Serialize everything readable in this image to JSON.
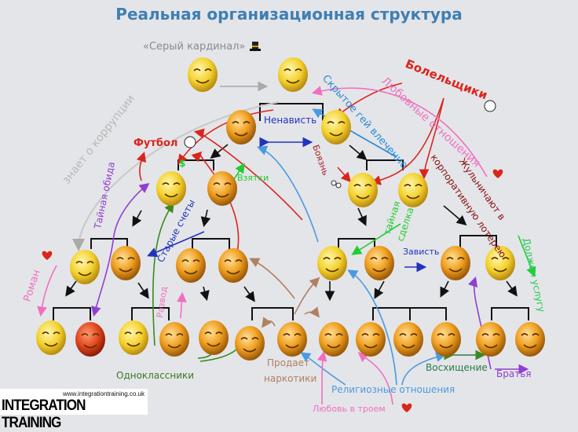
{
  "title": "Реальная организационная структура",
  "labels": {
    "grey_cardinal": "«Серый кардинал»",
    "fans": "Болельщики",
    "love_relations": "Любовные отношения",
    "hidden_gay": "Скрытое гей влечение",
    "hatred": "Ненависть",
    "football": "Футбол",
    "knows_corruption": "знает о коррупции",
    "secret_grudge": "Тайная обида",
    "bribes": "Взятки",
    "dollar": "$",
    "fear": "Боязнь",
    "cheat_1": "Жульничают в",
    "cheat_2": "корпоративную лотерею",
    "old_scores": "Старые счеты",
    "secret_deal_1": "тайная",
    "secret_deal_2": "сделка",
    "envy": "Зависть",
    "owes_favor": "Должен услугу",
    "romance": "Роман",
    "divorce": "Развод",
    "classmates": "Одноклассники",
    "drugs_1": "Продает",
    "drugs_2": "наркотики",
    "religious": "Религиозные отношения",
    "admiration": "Восхищение",
    "brothers": "Братья",
    "threesome": "Любовь в троем"
  },
  "logo": {
    "url": "www.integrationtraining.co.uk",
    "brand": "INTEGRATION TRAINING"
  },
  "colors": {
    "title": "#3f7fb3",
    "red": "#d9261c",
    "pink": "#f070c0",
    "blue": "#2a8bd6",
    "darkblue": "#2233bb",
    "green": "#22cc33",
    "purple": "#9040d0",
    "brown": "#b08060",
    "gray": "#b8b8b8"
  },
  "icons": [
    "top-hat-icon",
    "soccer-ball-icon",
    "heart-icon",
    "eyes-icon",
    "smiley-face-icon"
  ]
}
